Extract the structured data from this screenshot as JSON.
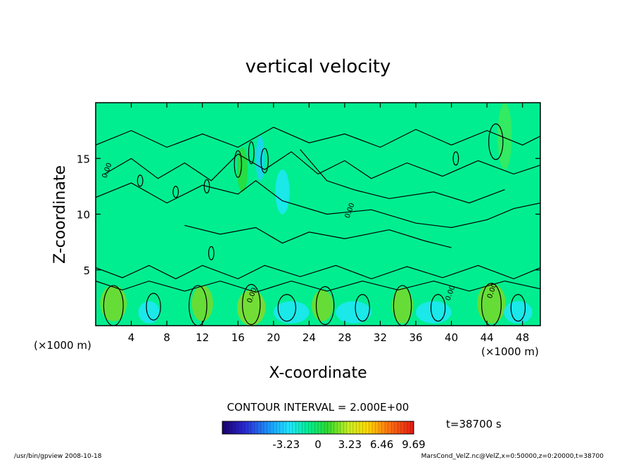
{
  "chart_data": {
    "type": "heatmap",
    "title": "vertical velocity",
    "xlabel": "X-coordinate",
    "ylabel": "Z-coordinate",
    "x_unit_left": "(×1000 m)",
    "x_unit_right": "(×1000 m)",
    "x_ticks": [
      4,
      8,
      12,
      16,
      20,
      24,
      28,
      32,
      36,
      40,
      44,
      48
    ],
    "y_ticks": [
      5,
      10,
      15
    ],
    "xlim": [
      0,
      50
    ],
    "ylim": [
      0,
      20
    ],
    "contour_interval": "CONTOUR INTERVAL = 2.000E+00",
    "time_label": "t=38700 s",
    "colorbar": {
      "min": -9.69,
      "max": 9.69,
      "tick_labels": [
        "-3.23",
        "0",
        "3.23",
        "6.46",
        "9.69"
      ],
      "tick_values": [
        -3.23,
        0,
        3.23,
        6.46,
        9.69
      ]
    },
    "contour_labels": [
      "0.00",
      "0.00",
      "0.00",
      "0.00",
      "0.00"
    ],
    "colors": {
      "background_field": "#00ee90",
      "frame": "#000000"
    }
  },
  "footer": {
    "left": "/usr/bin/gpview   2008-10-18",
    "right": "MarsCond_VelZ.nc@VelZ,x=0:50000,z=0:20000,t=38700"
  }
}
